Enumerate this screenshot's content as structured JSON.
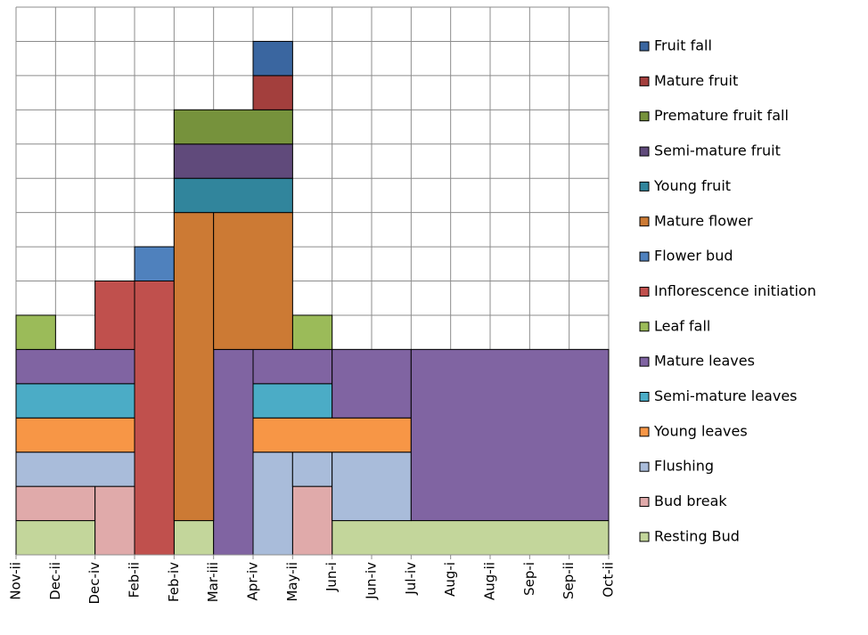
{
  "chart_data": {
    "type": "stacked-bar",
    "categories": [
      "Nov-ii",
      "Dec-ii",
      "Dec-iv",
      "Feb-ii",
      "Feb-iv",
      "Mar-iii",
      "Apr-iv",
      "May-ii",
      "Jun-i",
      "Jun-iv",
      "Jul-iv",
      "Aug-i",
      "Aug-ii",
      "Sep-i",
      "Sep-ii",
      "Oct-ii"
    ],
    "series": [
      {
        "name": "Resting Bud",
        "color": "#c3d69b",
        "values": [
          1,
          1,
          0,
          0,
          1,
          0,
          0,
          0,
          1,
          1,
          1,
          1,
          1,
          1,
          1,
          null
        ]
      },
      {
        "name": "Bud break",
        "color": "#e0aaaa",
        "values": [
          1,
          1,
          2,
          0,
          0,
          0,
          0,
          2,
          0,
          0,
          0,
          0,
          0,
          0,
          0,
          null
        ]
      },
      {
        "name": "Flushing",
        "color": "#a9bcda",
        "values": [
          1,
          1,
          1,
          0,
          0,
          0,
          3,
          1,
          2,
          2,
          0,
          0,
          0,
          0,
          0,
          null
        ]
      },
      {
        "name": "Young leaves",
        "color": "#f79646",
        "values": [
          1,
          1,
          1,
          0,
          0,
          0,
          1,
          1,
          1,
          1,
          0,
          0,
          0,
          0,
          0,
          null
        ]
      },
      {
        "name": "Semi-mature leaves",
        "color": "#4bacc6",
        "values": [
          1,
          1,
          1,
          0,
          0,
          0,
          1,
          1,
          0,
          0,
          0,
          0,
          0,
          0,
          0,
          null
        ]
      },
      {
        "name": "Mature leaves",
        "color": "#8064a2",
        "values": [
          1,
          1,
          1,
          0,
          0,
          6,
          1,
          1,
          2,
          2,
          5,
          5,
          5,
          5,
          5,
          null
        ]
      },
      {
        "name": "Leaf fall",
        "color": "#9bbb59",
        "values": [
          1,
          0,
          0,
          0,
          0,
          0,
          0,
          1,
          0,
          0,
          0,
          0,
          0,
          0,
          0,
          null
        ]
      },
      {
        "name": "Inflorescence initiation",
        "color": "#c0504d",
        "values": [
          0,
          0,
          2,
          8,
          0,
          0,
          0,
          0,
          0,
          0,
          0,
          0,
          0,
          0,
          0,
          null
        ]
      },
      {
        "name": "Flower bud",
        "color": "#4f81bd",
        "values": [
          0,
          0,
          0,
          1,
          0,
          0,
          0,
          0,
          0,
          0,
          0,
          0,
          0,
          0,
          0,
          null
        ]
      },
      {
        "name": "Mature flower",
        "color": "#cc7a34",
        "values": [
          0,
          0,
          0,
          0,
          9,
          4,
          4,
          0,
          0,
          0,
          0,
          0,
          0,
          0,
          0,
          null
        ]
      },
      {
        "name": "Young fruit",
        "color": "#31859c",
        "values": [
          0,
          0,
          0,
          0,
          1,
          1,
          1,
          0,
          0,
          0,
          0,
          0,
          0,
          0,
          0,
          null
        ]
      },
      {
        "name": "Semi-mature fruit",
        "color": "#604a7b",
        "values": [
          0,
          0,
          0,
          0,
          1,
          1,
          1,
          0,
          0,
          0,
          0,
          0,
          0,
          0,
          0,
          null
        ]
      },
      {
        "name": "Premature fruit fall",
        "color": "#76923c",
        "values": [
          0,
          0,
          0,
          0,
          1,
          1,
          1,
          0,
          0,
          0,
          0,
          0,
          0,
          0,
          0,
          null
        ]
      },
      {
        "name": "Mature fruit",
        "color": "#a33f3d",
        "values": [
          0,
          0,
          0,
          0,
          0,
          0,
          1,
          0,
          0,
          0,
          0,
          0,
          0,
          0,
          0,
          null
        ]
      },
      {
        "name": "Fruit fall",
        "color": "#3a66a0",
        "values": [
          0,
          0,
          0,
          0,
          0,
          0,
          1,
          0,
          0,
          0,
          0,
          0,
          0,
          0,
          0,
          null
        ]
      }
    ],
    "ylim": [
      0,
      16
    ],
    "yticks": [
      0,
      1,
      2,
      3,
      4,
      5,
      6,
      7,
      8,
      9,
      10,
      11,
      12,
      13,
      14,
      15,
      16
    ],
    "grid": true,
    "legend": "right"
  }
}
